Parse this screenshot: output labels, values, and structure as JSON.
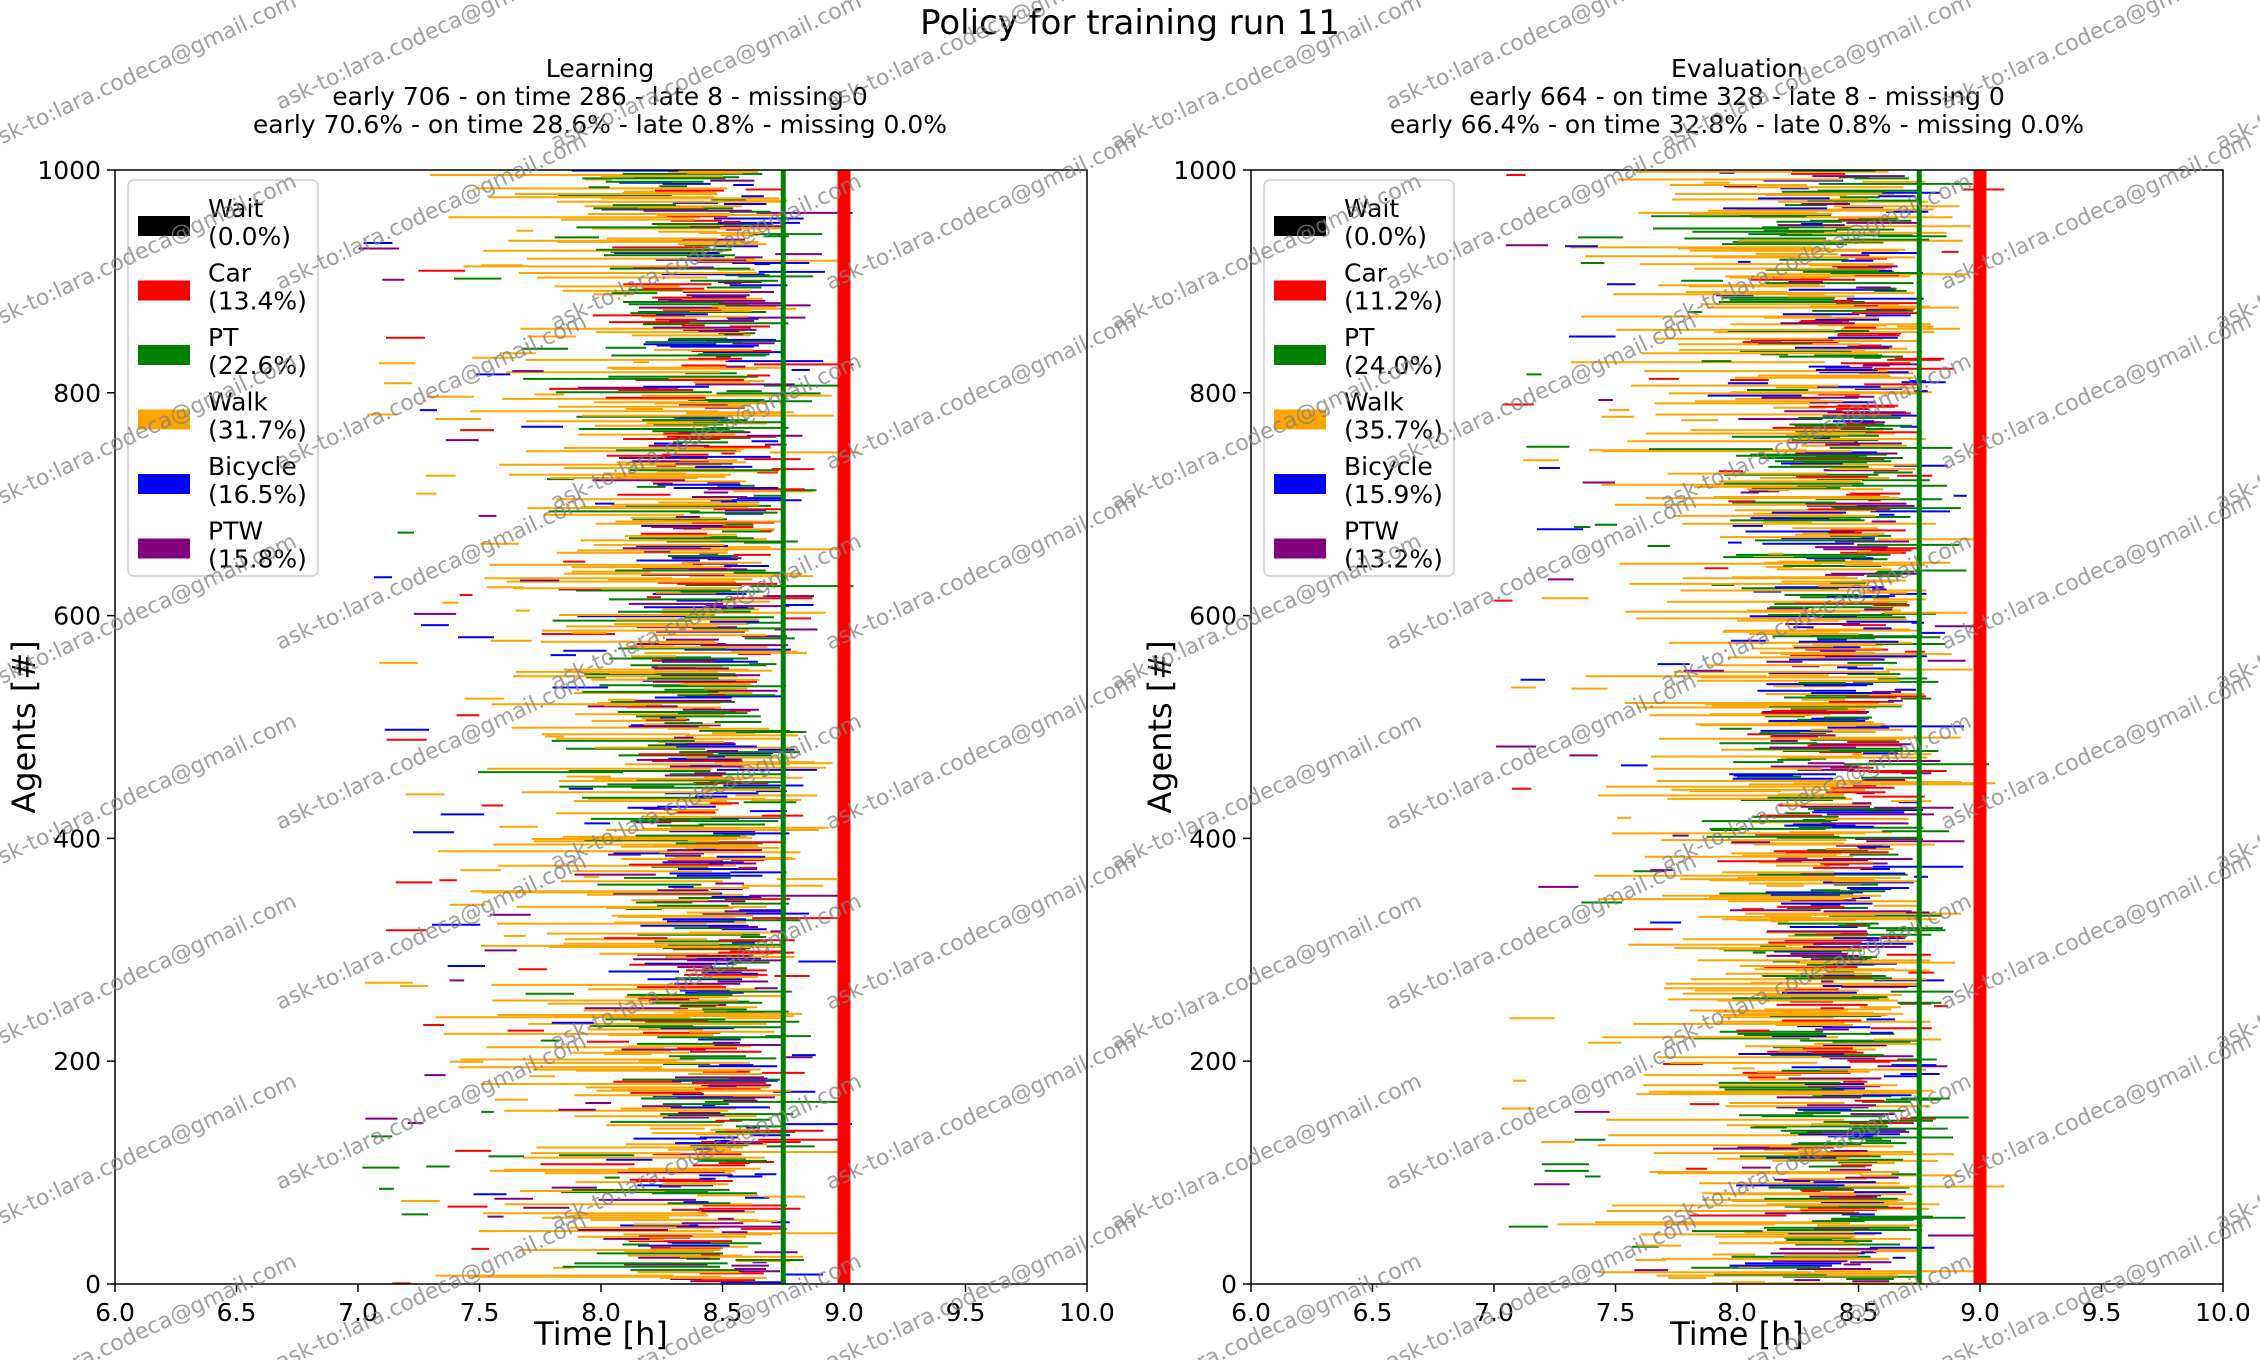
{
  "figure_title": "Policy for training run 11",
  "watermark_text": "ask-to:lara.codeca@gmail.com",
  "colors": {
    "Wait": "#000000",
    "Car": "#ff0000",
    "PT": "#008000",
    "Walk": "#ffa500",
    "Bicycle": "#0000ff",
    "PTW": "#800080"
  },
  "chart_data": [
    {
      "type": "timeline",
      "title": "Learning",
      "subtitle_lines": [
        "early 706 - on time 286 - late 8 - missing 0",
        "early 70.6% - on time 28.6% - late 0.8% - missing 0.0%"
      ],
      "xlabel": "Time [h]",
      "ylabel": "Agents [#]",
      "xlim": [
        6.0,
        10.0
      ],
      "ylim": [
        0,
        1000
      ],
      "xticks": [
        "6.0",
        "6.5",
        "7.0",
        "7.5",
        "8.0",
        "8.5",
        "9.0",
        "9.5",
        "10.0"
      ],
      "yticks": [
        "0",
        "200",
        "400",
        "600",
        "800",
        "1000"
      ],
      "reference_lines": [
        {
          "x": 8.75,
          "color": "#008000"
        },
        {
          "x": 9.0,
          "color": "#ff0000"
        }
      ],
      "legend_position": "upper-left",
      "legend": [
        {
          "mode": "Wait",
          "label": "Wait",
          "share": "(0.0%)"
        },
        {
          "mode": "Car",
          "label": "Car",
          "share": "(13.4%)"
        },
        {
          "mode": "PT",
          "label": "PT",
          "share": "(22.6%)"
        },
        {
          "mode": "Walk",
          "label": "Walk",
          "share": "(31.7%)"
        },
        {
          "mode": "Bicycle",
          "label": "Bicycle",
          "share": "(16.5%)"
        },
        {
          "mode": "PTW",
          "label": "PTW",
          "share": "(15.8%)"
        }
      ],
      "agent_count": 1000,
      "departure_range_h": [
        7.0,
        8.75
      ],
      "mode_shares": {
        "Car": 0.134,
        "PT": 0.226,
        "Walk": 0.317,
        "Bicycle": 0.165,
        "PTW": 0.158
      },
      "arrival_window_h": [
        8.0,
        9.1
      ],
      "arrival_peak_h": 8.6
    },
    {
      "type": "timeline",
      "title": "Evaluation",
      "subtitle_lines": [
        "early 664 - on time 328 - late 8 - missing 0",
        "early 66.4% - on time 32.8% - late 0.8% - missing 0.0%"
      ],
      "xlabel": "Time [h]",
      "ylabel": "Agents [#]",
      "xlim": [
        6.0,
        10.0
      ],
      "ylim": [
        0,
        1000
      ],
      "xticks": [
        "6.0",
        "6.5",
        "7.0",
        "7.5",
        "8.0",
        "8.5",
        "9.0",
        "9.5",
        "10.0"
      ],
      "yticks": [
        "0",
        "200",
        "400",
        "600",
        "800",
        "1000"
      ],
      "reference_lines": [
        {
          "x": 8.75,
          "color": "#008000"
        },
        {
          "x": 9.0,
          "color": "#ff0000"
        }
      ],
      "legend_position": "upper-left",
      "legend": [
        {
          "mode": "Wait",
          "label": "Wait",
          "share": "(0.0%)"
        },
        {
          "mode": "Car",
          "label": "Car",
          "share": "(11.2%)"
        },
        {
          "mode": "PT",
          "label": "PT",
          "share": "(24.0%)"
        },
        {
          "mode": "Walk",
          "label": "Walk",
          "share": "(35.7%)"
        },
        {
          "mode": "Bicycle",
          "label": "Bicycle",
          "share": "(15.9%)"
        },
        {
          "mode": "PTW",
          "label": "PTW",
          "share": "(13.2%)"
        }
      ],
      "agent_count": 1000,
      "departure_range_h": [
        7.0,
        8.75
      ],
      "mode_shares": {
        "Car": 0.112,
        "PT": 0.24,
        "Walk": 0.357,
        "Bicycle": 0.159,
        "PTW": 0.132
      },
      "arrival_window_h": [
        8.0,
        9.1
      ],
      "arrival_peak_h": 8.6
    }
  ]
}
